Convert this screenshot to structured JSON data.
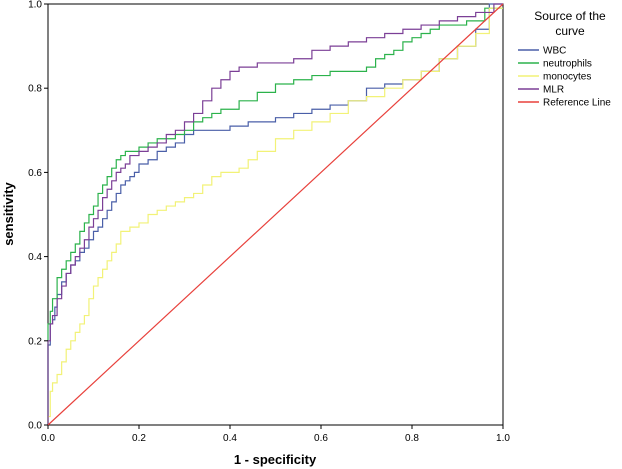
{
  "chart_data": {
    "type": "line",
    "xlabel": "1 - specificity",
    "ylabel": "sensitivity",
    "xlim": [
      0,
      1
    ],
    "ylim": [
      0,
      1
    ],
    "xticks": [
      "0.0",
      "0.2",
      "0.4",
      "0.6",
      "0.8",
      "1.0"
    ],
    "yticks": [
      "0.0",
      "0.2",
      "0.4",
      "0.6",
      "0.8",
      "1.0"
    ],
    "grid": false,
    "legend": {
      "title_line1": "Source of the",
      "title_line2": "curve",
      "placement": "right"
    },
    "series": [
      {
        "name": "WBC",
        "color": "#4a5fa8",
        "x": [
          0,
          0,
          0.005,
          0.01,
          0.015,
          0.02,
          0.03,
          0.04,
          0.05,
          0.06,
          0.07,
          0.08,
          0.09,
          0.1,
          0.11,
          0.12,
          0.13,
          0.14,
          0.15,
          0.16,
          0.17,
          0.18,
          0.19,
          0.2,
          0.22,
          0.24,
          0.26,
          0.28,
          0.3,
          0.32,
          0.34,
          0.36,
          0.4,
          0.44,
          0.46,
          0.5,
          0.54,
          0.58,
          0.62,
          0.66,
          0.7,
          0.74,
          0.78,
          0.82,
          0.86,
          0.9,
          0.94,
          0.97,
          1.0
        ],
        "y": [
          0,
          0.14,
          0.19,
          0.24,
          0.25,
          0.28,
          0.31,
          0.34,
          0.36,
          0.38,
          0.39,
          0.41,
          0.42,
          0.44,
          0.46,
          0.47,
          0.49,
          0.51,
          0.53,
          0.55,
          0.57,
          0.58,
          0.59,
          0.6,
          0.62,
          0.63,
          0.65,
          0.66,
          0.67,
          0.69,
          0.7,
          0.7,
          0.7,
          0.71,
          0.72,
          0.72,
          0.73,
          0.74,
          0.75,
          0.76,
          0.77,
          0.8,
          0.81,
          0.82,
          0.84,
          0.87,
          0.9,
          0.94,
          1.0
        ]
      },
      {
        "name": "neutrophils",
        "color": "#2bb24b",
        "x": [
          0,
          0,
          0.005,
          0.01,
          0.02,
          0.03,
          0.04,
          0.05,
          0.06,
          0.07,
          0.08,
          0.09,
          0.1,
          0.11,
          0.12,
          0.13,
          0.14,
          0.15,
          0.16,
          0.17,
          0.18,
          0.2,
          0.22,
          0.24,
          0.26,
          0.28,
          0.3,
          0.32,
          0.34,
          0.36,
          0.38,
          0.42,
          0.46,
          0.5,
          0.54,
          0.58,
          0.6,
          0.62,
          0.66,
          0.7,
          0.72,
          0.74,
          0.76,
          0.78,
          0.8,
          0.82,
          0.84,
          0.86,
          0.88,
          0.92,
          0.96,
          1.0
        ],
        "y": [
          0,
          0.16,
          0.24,
          0.27,
          0.3,
          0.35,
          0.37,
          0.39,
          0.41,
          0.43,
          0.46,
          0.48,
          0.5,
          0.52,
          0.55,
          0.57,
          0.59,
          0.61,
          0.63,
          0.64,
          0.65,
          0.65,
          0.66,
          0.67,
          0.68,
          0.68,
          0.69,
          0.7,
          0.72,
          0.73,
          0.74,
          0.75,
          0.77,
          0.79,
          0.81,
          0.82,
          0.83,
          0.83,
          0.84,
          0.84,
          0.85,
          0.87,
          0.88,
          0.89,
          0.91,
          0.92,
          0.93,
          0.94,
          0.95,
          0.95,
          0.96,
          0.99
        ]
      },
      {
        "name": "monocytes",
        "color": "#f2f277",
        "x": [
          0,
          0.005,
          0.01,
          0.02,
          0.03,
          0.04,
          0.05,
          0.06,
          0.07,
          0.08,
          0.09,
          0.1,
          0.11,
          0.12,
          0.13,
          0.14,
          0.15,
          0.16,
          0.18,
          0.2,
          0.22,
          0.24,
          0.26,
          0.28,
          0.3,
          0.32,
          0.34,
          0.36,
          0.38,
          0.4,
          0.42,
          0.44,
          0.46,
          0.5,
          0.54,
          0.58,
          0.62,
          0.66,
          0.7,
          0.74,
          0.78,
          0.82,
          0.86,
          0.9,
          0.94,
          0.97,
          1.0
        ],
        "y": [
          0,
          0.02,
          0.08,
          0.1,
          0.12,
          0.15,
          0.18,
          0.2,
          0.22,
          0.24,
          0.26,
          0.3,
          0.33,
          0.35,
          0.37,
          0.39,
          0.41,
          0.43,
          0.46,
          0.47,
          0.48,
          0.5,
          0.51,
          0.52,
          0.53,
          0.54,
          0.55,
          0.57,
          0.59,
          0.6,
          0.6,
          0.61,
          0.63,
          0.65,
          0.68,
          0.7,
          0.72,
          0.74,
          0.77,
          0.78,
          0.8,
          0.82,
          0.84,
          0.87,
          0.9,
          0.93,
          0.99
        ]
      },
      {
        "name": "MLR",
        "color": "#7b3f96",
        "x": [
          0,
          0,
          0.005,
          0.01,
          0.02,
          0.03,
          0.04,
          0.05,
          0.06,
          0.07,
          0.08,
          0.09,
          0.1,
          0.11,
          0.12,
          0.13,
          0.14,
          0.15,
          0.16,
          0.17,
          0.18,
          0.2,
          0.22,
          0.24,
          0.26,
          0.28,
          0.3,
          0.32,
          0.34,
          0.36,
          0.38,
          0.4,
          0.42,
          0.44,
          0.46,
          0.5,
          0.54,
          0.58,
          0.62,
          0.66,
          0.7,
          0.74,
          0.78,
          0.82,
          0.86,
          0.9,
          0.94,
          0.98,
          1.0
        ],
        "y": [
          0,
          0.13,
          0.2,
          0.24,
          0.26,
          0.3,
          0.33,
          0.36,
          0.38,
          0.4,
          0.42,
          0.44,
          0.47,
          0.49,
          0.51,
          0.54,
          0.56,
          0.58,
          0.6,
          0.61,
          0.62,
          0.64,
          0.65,
          0.66,
          0.67,
          0.69,
          0.7,
          0.72,
          0.74,
          0.77,
          0.8,
          0.82,
          0.84,
          0.85,
          0.85,
          0.86,
          0.86,
          0.87,
          0.89,
          0.9,
          0.91,
          0.92,
          0.93,
          0.94,
          0.95,
          0.96,
          0.97,
          0.98,
          1.0
        ]
      },
      {
        "name": "Reference Line",
        "color": "#e8413c",
        "x": [
          0,
          1
        ],
        "y": [
          0,
          1
        ]
      }
    ]
  }
}
